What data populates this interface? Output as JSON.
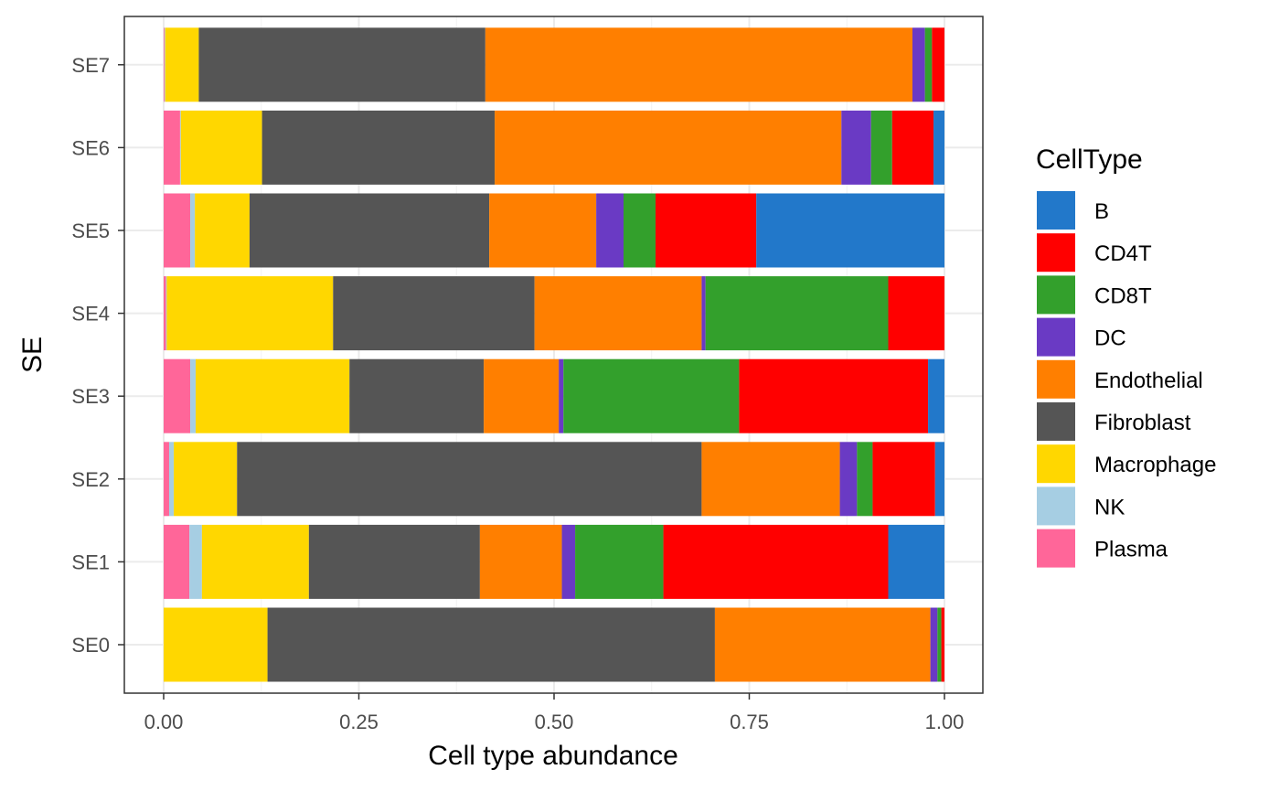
{
  "chart_data": {
    "type": "bar",
    "orientation": "horizontal",
    "stacked": true,
    "title": "",
    "xlabel": "Cell type abundance",
    "ylabel": "SE",
    "xlim": [
      0,
      1
    ],
    "x_ticks": [
      "0.00",
      "0.25",
      "0.50",
      "0.75",
      "1.00"
    ],
    "x_tick_values": [
      0,
      0.25,
      0.5,
      0.75,
      1.0
    ],
    "grid": true,
    "legend_title": "CellType",
    "legend_position": "right",
    "categories": [
      "SE0",
      "SE1",
      "SE2",
      "SE3",
      "SE4",
      "SE5",
      "SE6",
      "SE7"
    ],
    "series": [
      {
        "name": "Plasma",
        "color": "#FF6699",
        "values": [
          0.0,
          0.033,
          0.007,
          0.034,
          0.003,
          0.034,
          0.021,
          0.001
        ]
      },
      {
        "name": "NK",
        "color": "#A6CEE3",
        "values": [
          0.0,
          0.016,
          0.006,
          0.007,
          0.001,
          0.006,
          0.001,
          0.001
        ]
      },
      {
        "name": "Macrophage",
        "color": "#FFD700",
        "values": [
          0.133,
          0.137,
          0.081,
          0.197,
          0.213,
          0.07,
          0.104,
          0.043
        ]
      },
      {
        "name": "Fibroblast",
        "color": "#555555",
        "values": [
          0.573,
          0.219,
          0.595,
          0.172,
          0.258,
          0.307,
          0.298,
          0.367
        ]
      },
      {
        "name": "Endothelial",
        "color": "#FF7F00",
        "values": [
          0.276,
          0.105,
          0.177,
          0.096,
          0.214,
          0.137,
          0.444,
          0.547
        ]
      },
      {
        "name": "DC",
        "color": "#6A3AC4",
        "values": [
          0.009,
          0.017,
          0.022,
          0.006,
          0.005,
          0.035,
          0.038,
          0.016
        ]
      },
      {
        "name": "CD8T",
        "color": "#33A02C",
        "values": [
          0.005,
          0.113,
          0.02,
          0.225,
          0.234,
          0.041,
          0.027,
          0.009
        ]
      },
      {
        "name": "CD4T",
        "color": "#FF0000",
        "values": [
          0.004,
          0.288,
          0.08,
          0.242,
          0.072,
          0.129,
          0.053,
          0.016
        ]
      },
      {
        "name": "B",
        "color": "#2278CA",
        "values": [
          0.0,
          0.072,
          0.012,
          0.021,
          0.0,
          0.241,
          0.014,
          0.0
        ]
      }
    ],
    "legend_order": [
      "B",
      "CD4T",
      "CD8T",
      "DC",
      "Endothelial",
      "Fibroblast",
      "Macrophage",
      "NK",
      "Plasma"
    ]
  }
}
